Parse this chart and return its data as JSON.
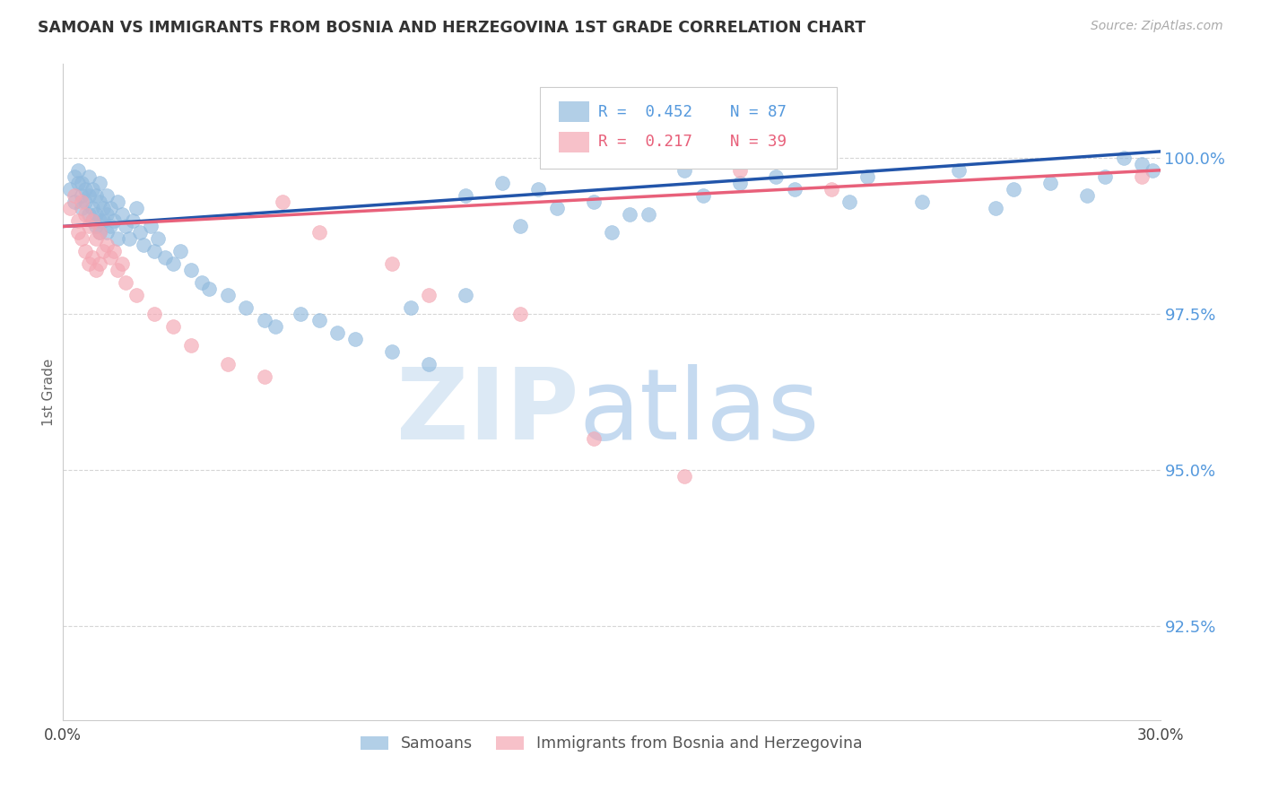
{
  "title": "SAMOAN VS IMMIGRANTS FROM BOSNIA AND HERZEGOVINA 1ST GRADE CORRELATION CHART",
  "source": "Source: ZipAtlas.com",
  "ylabel": "1st Grade",
  "xlim": [
    0.0,
    30.0
  ],
  "ylim": [
    91.0,
    101.5
  ],
  "yticks": [
    92.5,
    95.0,
    97.5,
    100.0
  ],
  "ytick_labels": [
    "92.5%",
    "95.0%",
    "97.5%",
    "100.0%"
  ],
  "blue_R": 0.452,
  "blue_N": 87,
  "pink_R": 0.217,
  "pink_N": 39,
  "blue_color": "#92BBDE",
  "pink_color": "#F4A7B3",
  "blue_line_color": "#2255AA",
  "pink_line_color": "#E8607A",
  "title_color": "#333333",
  "yaxis_color": "#5599DD",
  "grid_color": "#CCCCCC",
  "blue_x": [
    0.2,
    0.3,
    0.3,
    0.4,
    0.4,
    0.5,
    0.5,
    0.5,
    0.6,
    0.6,
    0.7,
    0.7,
    0.7,
    0.8,
    0.8,
    0.8,
    0.9,
    0.9,
    0.9,
    1.0,
    1.0,
    1.0,
    1.0,
    1.1,
    1.1,
    1.2,
    1.2,
    1.2,
    1.3,
    1.3,
    1.4,
    1.5,
    1.5,
    1.6,
    1.7,
    1.8,
    1.9,
    2.0,
    2.1,
    2.2,
    2.4,
    2.5,
    2.6,
    2.8,
    3.0,
    3.2,
    3.5,
    3.8,
    4.0,
    4.5,
    5.0,
    5.5,
    5.8,
    6.5,
    7.0,
    7.5,
    8.0,
    9.0,
    10.0,
    11.0,
    12.0,
    13.0,
    14.5,
    15.5,
    17.0,
    18.5,
    20.0,
    22.0,
    23.5,
    24.5,
    25.5,
    27.0,
    28.0,
    28.5,
    29.0,
    29.5,
    29.8,
    26.0,
    21.5,
    19.5,
    17.5,
    16.0,
    15.0,
    13.5,
    12.5,
    11.0,
    9.5
  ],
  "blue_y": [
    99.5,
    99.7,
    99.3,
    99.6,
    99.8,
    99.4,
    99.6,
    99.2,
    99.5,
    99.3,
    99.7,
    99.4,
    99.1,
    99.5,
    99.2,
    99.0,
    99.4,
    99.1,
    98.9,
    99.6,
    99.3,
    99.0,
    98.8,
    99.2,
    99.0,
    99.4,
    99.1,
    98.8,
    99.2,
    98.9,
    99.0,
    99.3,
    98.7,
    99.1,
    98.9,
    98.7,
    99.0,
    99.2,
    98.8,
    98.6,
    98.9,
    98.5,
    98.7,
    98.4,
    98.3,
    98.5,
    98.2,
    98.0,
    97.9,
    97.8,
    97.6,
    97.4,
    97.3,
    97.5,
    97.4,
    97.2,
    97.1,
    96.9,
    96.7,
    99.4,
    99.6,
    99.5,
    99.3,
    99.1,
    99.8,
    99.6,
    99.5,
    99.7,
    99.3,
    99.8,
    99.2,
    99.6,
    99.4,
    99.7,
    100.0,
    99.9,
    99.8,
    99.5,
    99.3,
    99.7,
    99.4,
    99.1,
    98.8,
    99.2,
    98.9,
    97.8,
    97.6
  ],
  "pink_x": [
    0.2,
    0.3,
    0.4,
    0.4,
    0.5,
    0.5,
    0.6,
    0.6,
    0.7,
    0.7,
    0.8,
    0.8,
    0.9,
    0.9,
    1.0,
    1.0,
    1.1,
    1.2,
    1.3,
    1.4,
    1.5,
    1.6,
    1.7,
    2.0,
    2.5,
    3.0,
    3.5,
    4.5,
    5.5,
    6.0,
    7.0,
    9.0,
    10.0,
    12.5,
    14.5,
    17.0,
    18.5,
    21.0,
    29.5
  ],
  "pink_y": [
    99.2,
    99.4,
    99.0,
    98.8,
    99.3,
    98.7,
    99.1,
    98.5,
    98.9,
    98.3,
    99.0,
    98.4,
    98.7,
    98.2,
    98.8,
    98.3,
    98.5,
    98.6,
    98.4,
    98.5,
    98.2,
    98.3,
    98.0,
    97.8,
    97.5,
    97.3,
    97.0,
    96.7,
    96.5,
    99.3,
    98.8,
    98.3,
    97.8,
    97.5,
    95.5,
    94.9,
    99.8,
    99.5,
    99.7
  ]
}
